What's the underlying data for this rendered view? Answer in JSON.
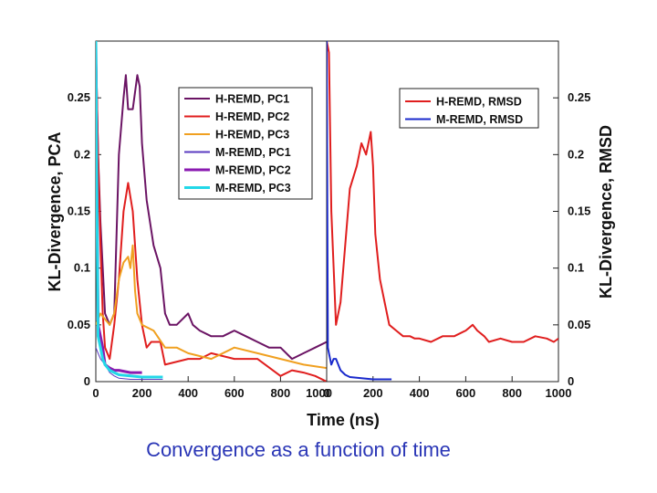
{
  "caption": "Convergence as a function of time",
  "chart_data": [
    {
      "type": "line",
      "panel": "left",
      "xlabel": "Time (ns)",
      "ylabel": "KL-Divergence, PCA",
      "xlim": [
        0,
        1000
      ],
      "ylim": [
        0,
        0.3
      ],
      "xticks": [
        "0",
        "200",
        "400",
        "600",
        "800",
        "1000"
      ],
      "yticks": [
        "0",
        "0.05",
        "0.1",
        "0.15",
        "0.2",
        "0.25"
      ],
      "legend_position": "top-right",
      "series": [
        {
          "name": "H-REMD, PC1",
          "color": "#6b1464",
          "width": 2,
          "x": [
            0,
            10,
            20,
            40,
            60,
            80,
            100,
            120,
            130,
            140,
            160,
            180,
            190,
            200,
            220,
            250,
            280,
            300,
            320,
            350,
            400,
            420,
            450,
            500,
            550,
            600,
            650,
            700,
            750,
            800,
            850,
            900,
            950,
            1000
          ],
          "y": [
            0.3,
            0.2,
            0.14,
            0.06,
            0.05,
            0.06,
            0.2,
            0.25,
            0.27,
            0.24,
            0.24,
            0.27,
            0.26,
            0.21,
            0.16,
            0.12,
            0.1,
            0.06,
            0.05,
            0.05,
            0.06,
            0.05,
            0.045,
            0.04,
            0.04,
            0.045,
            0.04,
            0.035,
            0.03,
            0.03,
            0.02,
            0.025,
            0.03,
            0.035
          ]
        },
        {
          "name": "H-REMD, PC2",
          "color": "#e01e1e",
          "width": 2,
          "x": [
            0,
            10,
            20,
            30,
            40,
            60,
            80,
            100,
            120,
            140,
            160,
            180,
            200,
            220,
            240,
            280,
            300,
            400,
            450,
            500,
            600,
            700,
            800,
            850,
            900,
            950,
            1000
          ],
          "y": [
            0.3,
            0.2,
            0.12,
            0.06,
            0.03,
            0.02,
            0.05,
            0.09,
            0.15,
            0.175,
            0.15,
            0.09,
            0.05,
            0.03,
            0.035,
            0.035,
            0.015,
            0.02,
            0.02,
            0.025,
            0.02,
            0.02,
            0.005,
            0.01,
            0.008,
            0.005,
            0.0
          ]
        },
        {
          "name": "H-REMD, PC3",
          "color": "#f0a020",
          "width": 2,
          "x": [
            0,
            20,
            40,
            60,
            80,
            100,
            120,
            140,
            150,
            160,
            170,
            180,
            200,
            250,
            300,
            350,
            400,
            500,
            600,
            700,
            800,
            900,
            1000
          ],
          "y": [
            0.05,
            0.06,
            0.055,
            0.05,
            0.06,
            0.09,
            0.105,
            0.11,
            0.1,
            0.12,
            0.08,
            0.06,
            0.05,
            0.045,
            0.03,
            0.03,
            0.025,
            0.02,
            0.03,
            0.025,
            0.02,
            0.015,
            0.012
          ]
        },
        {
          "name": "M-REMD, PC1",
          "color": "#5a3bc0",
          "width": 1,
          "x": [
            0,
            10,
            20,
            40,
            60,
            80,
            100,
            150,
            200,
            250,
            290
          ],
          "y": [
            0.03,
            0.025,
            0.02,
            0.015,
            0.008,
            0.005,
            0.003,
            0.002,
            0.002,
            0.002,
            0.002
          ]
        },
        {
          "name": "M-REMD, PC2",
          "color": "#8a1ab0",
          "width": 3,
          "x": [
            0,
            10,
            20,
            30,
            40,
            60,
            80,
            100,
            150,
            200
          ],
          "y": [
            0.3,
            0.05,
            0.04,
            0.03,
            0.015,
            0.012,
            0.01,
            0.01,
            0.008,
            0.008
          ]
        },
        {
          "name": "M-REMD, PC3",
          "color": "#22d8e8",
          "width": 3,
          "x": [
            0,
            5,
            10,
            20,
            30,
            40,
            60,
            80,
            100,
            150,
            200,
            250,
            290
          ],
          "y": [
            0.3,
            0.15,
            0.04,
            0.03,
            0.02,
            0.015,
            0.01,
            0.008,
            0.006,
            0.005,
            0.004,
            0.004,
            0.004
          ]
        }
      ]
    },
    {
      "type": "line",
      "panel": "right",
      "xlabel": "Time (ns)",
      "ylabel": "KL-Divergence, RMSD",
      "xlim": [
        0,
        1000
      ],
      "ylim": [
        0,
        0.3
      ],
      "xticks": [
        "0",
        "200",
        "400",
        "600",
        "800",
        "1000"
      ],
      "yticks": [
        "0",
        "0.05",
        "0.1",
        "0.15",
        "0.2",
        "0.25"
      ],
      "legend_position": "top-right",
      "series": [
        {
          "name": "H-REMD, RMSD",
          "color": "#e01e1e",
          "width": 2,
          "x": [
            0,
            10,
            20,
            40,
            60,
            80,
            100,
            130,
            150,
            170,
            190,
            200,
            210,
            230,
            250,
            270,
            300,
            330,
            360,
            380,
            400,
            450,
            500,
            550,
            600,
            630,
            650,
            680,
            700,
            750,
            800,
            850,
            900,
            950,
            980,
            1000
          ],
          "y": [
            0.3,
            0.29,
            0.15,
            0.05,
            0.07,
            0.12,
            0.17,
            0.19,
            0.21,
            0.2,
            0.22,
            0.19,
            0.13,
            0.09,
            0.07,
            0.05,
            0.045,
            0.04,
            0.04,
            0.038,
            0.038,
            0.035,
            0.04,
            0.04,
            0.045,
            0.05,
            0.045,
            0.04,
            0.035,
            0.038,
            0.035,
            0.035,
            0.04,
            0.038,
            0.035,
            0.038
          ]
        },
        {
          "name": "M-REMD, RMSD",
          "color": "#1a2acc",
          "width": 2,
          "x": [
            0,
            2,
            5,
            10,
            20,
            30,
            40,
            60,
            80,
            100,
            150,
            200,
            250,
            280
          ],
          "y": [
            0.3,
            0.2,
            0.03,
            0.025,
            0.015,
            0.02,
            0.02,
            0.01,
            0.006,
            0.004,
            0.003,
            0.002,
            0.002,
            0.002
          ]
        }
      ]
    }
  ]
}
